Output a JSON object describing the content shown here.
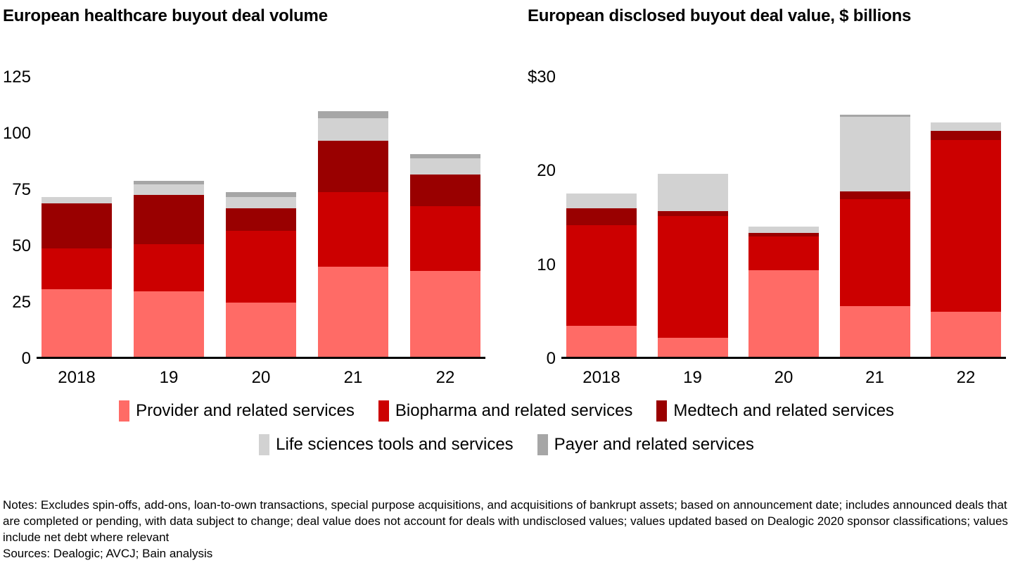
{
  "chart_data": [
    {
      "type": "bar",
      "stacked": true,
      "title": "European healthcare buyout deal volume",
      "categories": [
        "2018",
        "19",
        "20",
        "21",
        "22"
      ],
      "series": [
        {
          "name": "Provider and related services",
          "color": "#ff6b66",
          "values": [
            30,
            29,
            24,
            40,
            38
          ]
        },
        {
          "name": "Biopharma and related services",
          "color": "#cc0000",
          "values": [
            18,
            21,
            32,
            33,
            29
          ]
        },
        {
          "name": "Medtech and related services",
          "color": "#990000",
          "values": [
            20,
            22,
            10,
            23,
            14
          ]
        },
        {
          "name": "Life sciences tools and services",
          "color": "#d2d2d2",
          "values": [
            3,
            4.5,
            5,
            10,
            7
          ]
        },
        {
          "name": "Payer and related services",
          "color": "#a6a6a6",
          "values": [
            0,
            1.5,
            2,
            3,
            2
          ]
        }
      ],
      "totals": [
        71,
        78,
        73,
        109,
        90
      ],
      "xlabel": "",
      "ylabel": "",
      "ylim": [
        0,
        125
      ],
      "y_ticks": [
        0,
        25,
        50,
        75,
        100,
        125
      ],
      "y_tick_labels": [
        "0",
        "25",
        "50",
        "75",
        "100",
        "125"
      ],
      "grid": false,
      "legend_position": "bottom"
    },
    {
      "type": "bar",
      "stacked": true,
      "title": "European disclosed buyout deal value, $ billions",
      "categories": [
        "2018",
        "19",
        "20",
        "21",
        "22"
      ],
      "series": [
        {
          "name": "Provider and related services",
          "color": "#ff6b66",
          "values": [
            3.3,
            2.0,
            9.2,
            5.4,
            4.8
          ]
        },
        {
          "name": "Biopharma and related services",
          "color": "#cc0000",
          "values": [
            10.7,
            13.0,
            3.6,
            11.4,
            18.3
          ]
        },
        {
          "name": "Medtech and related services",
          "color": "#990000",
          "values": [
            1.8,
            0.5,
            0.4,
            0.8,
            1.0
          ]
        },
        {
          "name": "Life sciences tools and services",
          "color": "#d2d2d2",
          "values": [
            1.6,
            4.0,
            0.7,
            8.0,
            0.9
          ]
        },
        {
          "name": "Payer and related services",
          "color": "#a6a6a6",
          "values": [
            0,
            0,
            0,
            0.2,
            0
          ]
        }
      ],
      "totals": [
        17.4,
        19.5,
        13.9,
        25.8,
        25.0
      ],
      "xlabel": "",
      "ylabel": "",
      "ylim": [
        0,
        30
      ],
      "y_ticks": [
        0,
        10,
        20,
        30
      ],
      "y_tick_labels": [
        "0",
        "10",
        "20",
        "$30"
      ],
      "grid": false,
      "legend_position": "bottom"
    }
  ],
  "legend": {
    "rows": [
      [
        {
          "label": "Provider and related services",
          "color": "#ff6b66"
        },
        {
          "label": "Biopharma and related services",
          "color": "#cc0000"
        },
        {
          "label": "Medtech and related services",
          "color": "#990000"
        }
      ],
      [
        {
          "label": "Life sciences tools and services",
          "color": "#d2d2d2"
        },
        {
          "label": "Payer and related services",
          "color": "#a6a6a6"
        }
      ]
    ]
  },
  "notes": {
    "text": "Notes: Excludes spin-offs, add-ons, loan-to-own transactions, special purpose acquisitions, and acquisitions of bankrupt assets; based on announcement date; includes announced deals that are completed or pending, with data subject to change; deal value does not account for deals with undisclosed values; values updated based on Dealogic 2020 sponsor classifications; values include net debt where relevant",
    "sources": "Sources: Dealogic; AVCJ; Bain analysis"
  }
}
